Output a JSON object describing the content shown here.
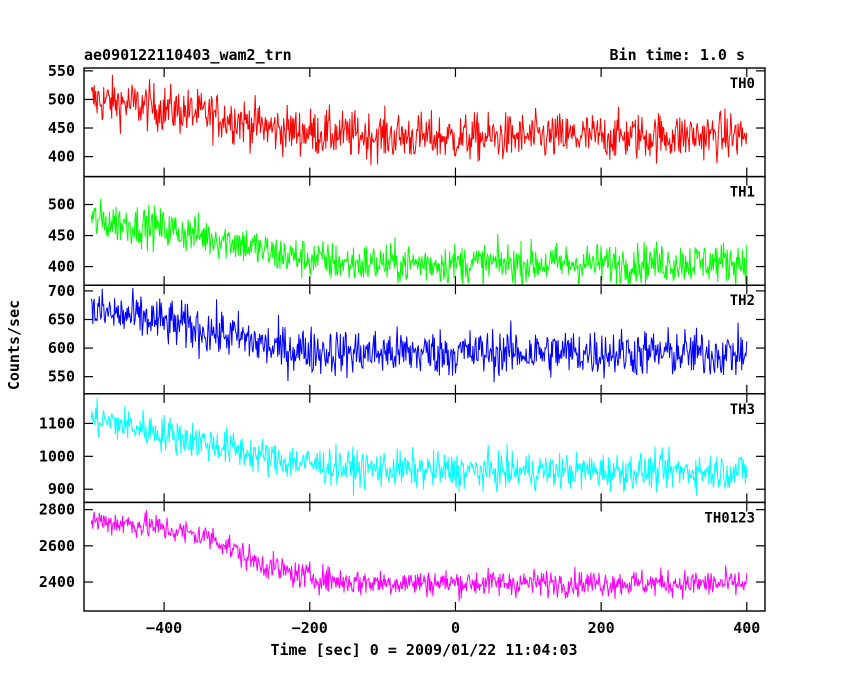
{
  "header": {
    "title": "ae090122110403_wam2_trn",
    "bin_time": "Bin time: 1.0 s"
  },
  "chart_data": {
    "type": "line",
    "title": "ae090122110403_wam2_trn",
    "subtitle": "Bin time: 1.0 s",
    "xlabel": "Time [sec] 0 = 2009/01/22 11:04:03",
    "ylabel": "Counts/sec",
    "xlim": [
      -510,
      425
    ],
    "x_ticks": [
      -400,
      -200,
      0,
      200,
      400
    ],
    "x_tick_labels": [
      "−400",
      "−200",
      "0",
      "200",
      "400"
    ],
    "x_range": [
      -500,
      400
    ],
    "bin_seconds": 1.0,
    "grid": false,
    "series": [
      {
        "name": "TH0",
        "color": "#ff0000",
        "ylim": [
          365,
          555
        ],
        "y_ticks": [
          400,
          450,
          500,
          550
        ],
        "trend": [
          [
            -500,
            500
          ],
          [
            -420,
            488
          ],
          [
            -300,
            465
          ],
          [
            -250,
            448
          ],
          [
            -150,
            438
          ],
          [
            0,
            433
          ],
          [
            200,
            435
          ],
          [
            400,
            437
          ]
        ],
        "noise": 28
      },
      {
        "name": "TH1",
        "color": "#00ff00",
        "ylim": [
          370,
          545
        ],
        "y_ticks": [
          400,
          450,
          500
        ],
        "trend": [
          [
            -500,
            475
          ],
          [
            -420,
            465
          ],
          [
            -300,
            440
          ],
          [
            -250,
            420
          ],
          [
            -150,
            405
          ],
          [
            0,
            405
          ],
          [
            200,
            405
          ],
          [
            400,
            408
          ]
        ],
        "noise": 22
      },
      {
        "name": "TH2",
        "color": "#0000ff",
        "ylim": [
          520,
          710
        ],
        "y_ticks": [
          550,
          600,
          650,
          700
        ],
        "trend": [
          [
            -500,
            665
          ],
          [
            -420,
            650
          ],
          [
            -300,
            620
          ],
          [
            -250,
            600
          ],
          [
            -150,
            592
          ],
          [
            0,
            592
          ],
          [
            200,
            592
          ],
          [
            400,
            590
          ]
        ],
        "noise": 28
      },
      {
        "name": "TH3",
        "color": "#00ffff",
        "ylim": [
          860,
          1190
        ],
        "y_ticks": [
          900,
          1000,
          1100
        ],
        "trend": [
          [
            -500,
            1115
          ],
          [
            -420,
            1080
          ],
          [
            -300,
            1020
          ],
          [
            -250,
            990
          ],
          [
            -150,
            965
          ],
          [
            0,
            955
          ],
          [
            200,
            955
          ],
          [
            400,
            955
          ]
        ],
        "noise": 38
      },
      {
        "name": "TH0123",
        "color": "#ff00ff",
        "ylim": [
          2240,
          2840
        ],
        "y_ticks": [
          2400,
          2600,
          2800
        ],
        "trend": [
          [
            -500,
            2740
          ],
          [
            -420,
            2710
          ],
          [
            -330,
            2640
          ],
          [
            -280,
            2520
          ],
          [
            -220,
            2440
          ],
          [
            -150,
            2400
          ],
          [
            0,
            2395
          ],
          [
            200,
            2395
          ],
          [
            400,
            2390
          ]
        ],
        "noise": 50
      }
    ]
  }
}
